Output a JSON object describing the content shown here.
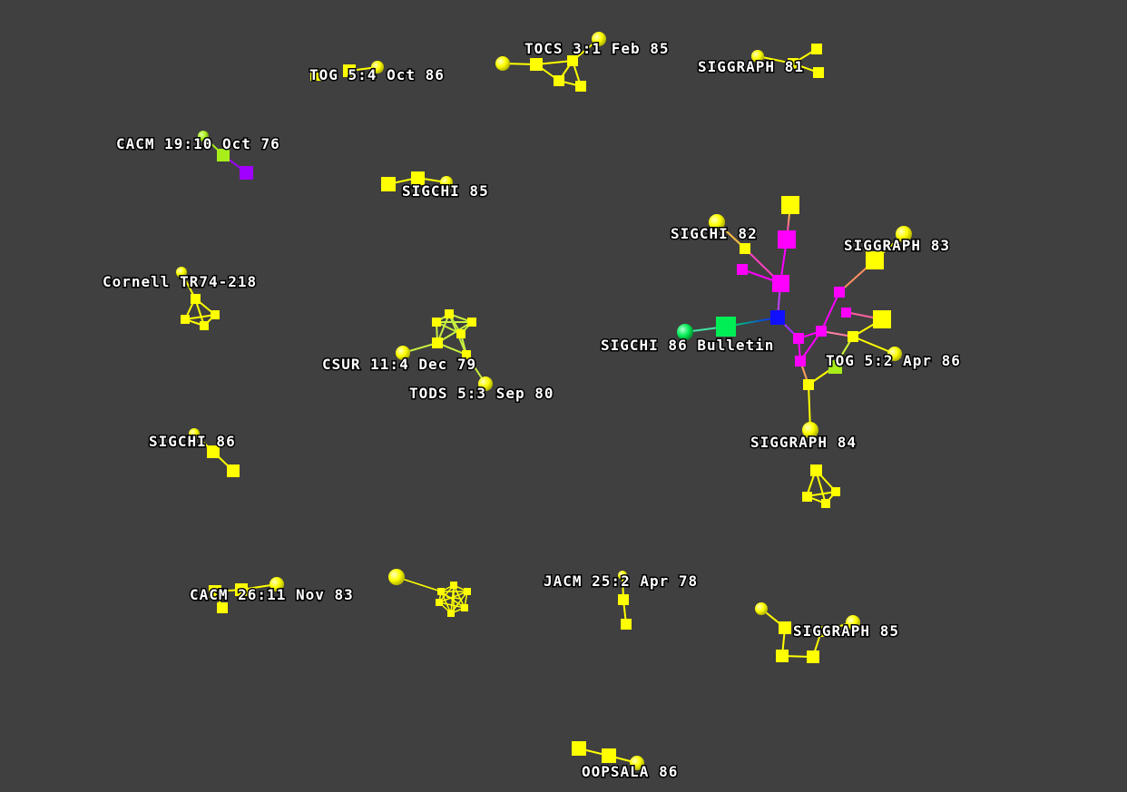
{
  "colors": {
    "background": "#404040",
    "yellow": "#ffff00",
    "yellow_green": "#a8ee1a",
    "magenta": "#ff00ff",
    "violet": "#a000ff",
    "green": "#00ee55",
    "blue": "#1010ff",
    "label": "#ffffff"
  },
  "labels": {
    "tog_5_4": "TOG 5:4 Oct 86",
    "tocs_3_1": "TOCS 3:1 Feb 85",
    "siggraph_81": "SIGGRAPH 81",
    "cacm_19_10": "CACM 19:10 Oct 76",
    "sigchi_85": "SIGCHI 85",
    "sigchi_82": "SIGCHI 82",
    "siggraph_83": "SIGGRAPH 83",
    "cornell_tr": "Cornell TR74-218",
    "sigchi_86_bulletin": "SIGCHI 86 Bulletin",
    "csur_11_4": "CSUR 11:4 Dec 79",
    "tog_5_2": "TOG 5:2 Apr 86",
    "tods_5_3": "TODS 5:3 Sep 80",
    "sigchi_86": "SIGCHI 86",
    "siggraph_84": "SIGGRAPH 84",
    "jacm_25_2": "JACM 25:2 Apr 78",
    "cacm_26_11": "CACM 26:11 Nov 83",
    "siggraph_85": "SIGGRAPH 85",
    "oopsala_86": "OOPSALA 86"
  }
}
